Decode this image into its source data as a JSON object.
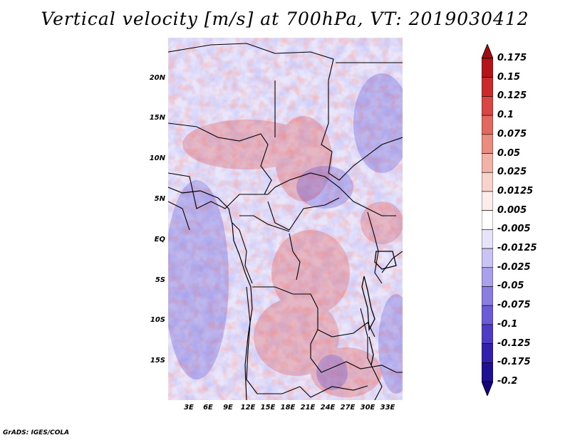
{
  "title": "Vertical velocity [m/s] at 700hPa, VT: 2019030412",
  "footer": "GrADS: IGES/COLA",
  "map": {
    "lat_labels": [
      "20N",
      "15N",
      "10N",
      "5N",
      "EQ",
      "5S",
      "10S",
      "15S"
    ],
    "lon_labels": [
      "3E",
      "6E",
      "9E",
      "12E",
      "15E",
      "18E",
      "21E",
      "24E",
      "27E",
      "30E",
      "33E"
    ]
  },
  "colorbar": {
    "labels": [
      "0.175",
      "0.15",
      "0.125",
      "0.1",
      "0.075",
      "0.05",
      "0.025",
      "0.0125",
      "0.005",
      "-0.005",
      "-0.0125",
      "-0.025",
      "-0.05",
      "-0.075",
      "-0.1",
      "-0.125",
      "-0.175",
      "-0.2"
    ],
    "colors": [
      "#9e0d12",
      "#b3131a",
      "#c92a2c",
      "#d94744",
      "#e2695f",
      "#eb8c81",
      "#f3b2a7",
      "#f8d3cc",
      "#fcecea",
      "#ffffff",
      "#e7e4fa",
      "#c9c4f3",
      "#a9a1ec",
      "#8a7de2",
      "#6c5bd6",
      "#4e3cc5",
      "#3320ad",
      "#201092",
      "#14067a"
    ]
  }
}
